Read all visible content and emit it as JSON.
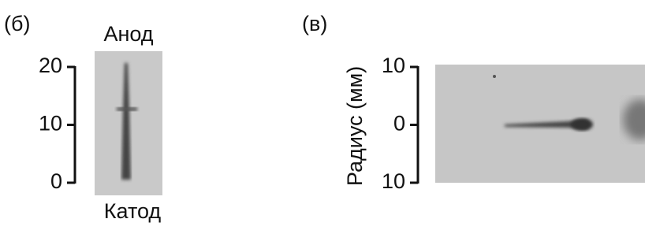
{
  "panels": [
    {
      "label": "(б)",
      "top_label": "Анод",
      "bottom_label": "Катод",
      "ylim": [
        0,
        20
      ],
      "yticks": [
        0,
        10,
        20
      ]
    },
    {
      "label": "(в)",
      "ylabel": "Радиус (мм)",
      "ylim": [
        -10,
        10
      ],
      "yticks": [
        {
          "value": -10,
          "label": "10"
        },
        0,
        10
      ]
    }
  ]
}
